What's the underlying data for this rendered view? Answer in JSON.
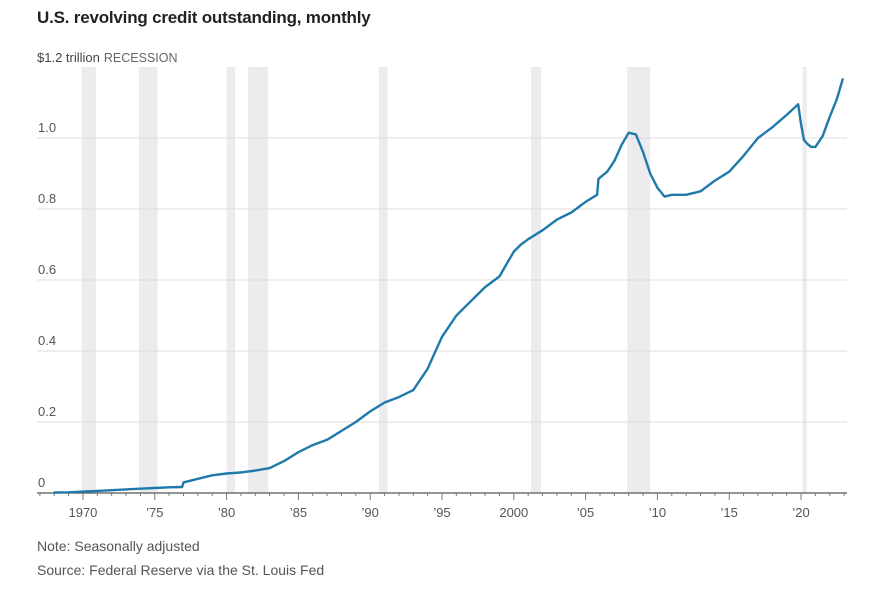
{
  "chart_data": {
    "type": "line",
    "title": "U.S. revolving credit outstanding, monthly",
    "ylabel": "$1.2 trillion",
    "recession_label": "RECESSION",
    "note": "Note: Seasonally adjusted",
    "source": "Source: Federal Reserve via the St. Louis Fed",
    "xlim": [
      1966.8,
      2023.2
    ],
    "ylim": [
      0,
      1.2
    ],
    "y_ticks": [
      {
        "value": 0,
        "label": "0"
      },
      {
        "value": 0.2,
        "label": "0.2"
      },
      {
        "value": 0.4,
        "label": "0.4"
      },
      {
        "value": 0.6,
        "label": "0.6"
      },
      {
        "value": 0.8,
        "label": "0.8"
      },
      {
        "value": 1.0,
        "label": "1.0"
      }
    ],
    "x_ticks": [
      {
        "value": 1970,
        "label": "1970"
      },
      {
        "value": 1975,
        "label": "’75"
      },
      {
        "value": 1980,
        "label": "’80"
      },
      {
        "value": 1985,
        "label": "’85"
      },
      {
        "value": 1990,
        "label": "’90"
      },
      {
        "value": 1995,
        "label": "’95"
      },
      {
        "value": 2000,
        "label": "2000"
      },
      {
        "value": 2005,
        "label": "’05"
      },
      {
        "value": 2010,
        "label": "’10"
      },
      {
        "value": 2015,
        "label": "’15"
      },
      {
        "value": 2020,
        "label": "’20"
      }
    ],
    "recessions": [
      [
        1969.9,
        1970.9
      ],
      [
        1973.9,
        1975.2
      ],
      [
        1980.0,
        1980.6
      ],
      [
        1981.5,
        1982.9
      ],
      [
        1990.6,
        1991.2
      ],
      [
        2001.2,
        2001.9
      ],
      [
        2007.9,
        2009.5
      ],
      [
        2020.1,
        2020.4
      ]
    ],
    "series": [
      {
        "name": "Revolving credit outstanding",
        "color": "#1f7aab",
        "x": [
          1968.0,
          1969.0,
          1970.0,
          1971.0,
          1972.0,
          1973.0,
          1974.0,
          1975.0,
          1976.0,
          1976.9,
          1977.0,
          1978.0,
          1979.0,
          1980.0,
          1981.0,
          1982.0,
          1983.0,
          1984.0,
          1985.0,
          1986.0,
          1987.0,
          1988.0,
          1989.0,
          1990.0,
          1991.0,
          1992.0,
          1993.0,
          1994.0,
          1995.0,
          1996.0,
          1997.0,
          1998.0,
          1999.0,
          2000.0,
          2000.5,
          2001.0,
          2002.0,
          2003.0,
          2004.0,
          2005.0,
          2005.8,
          2005.9,
          2006.5,
          2007.0,
          2007.5,
          2008.0,
          2008.5,
          2009.0,
          2009.5,
          2010.0,
          2010.5,
          2011.0,
          2012.0,
          2013.0,
          2014.0,
          2015.0,
          2016.0,
          2017.0,
          2018.0,
          2019.0,
          2019.8,
          2020.0,
          2020.2,
          2020.4,
          2020.7,
          2021.0,
          2021.5,
          2022.0,
          2022.5,
          2022.9
        ],
        "values": [
          0.001,
          0.002,
          0.004,
          0.006,
          0.008,
          0.01,
          0.012,
          0.014,
          0.016,
          0.017,
          0.03,
          0.04,
          0.05,
          0.055,
          0.058,
          0.063,
          0.07,
          0.09,
          0.115,
          0.135,
          0.15,
          0.175,
          0.2,
          0.23,
          0.255,
          0.27,
          0.29,
          0.35,
          0.44,
          0.5,
          0.54,
          0.58,
          0.61,
          0.68,
          0.7,
          0.715,
          0.74,
          0.77,
          0.79,
          0.82,
          0.84,
          0.885,
          0.905,
          0.935,
          0.98,
          1.015,
          1.01,
          0.96,
          0.9,
          0.86,
          0.835,
          0.84,
          0.84,
          0.85,
          0.88,
          0.905,
          0.95,
          1.0,
          1.03,
          1.065,
          1.095,
          1.04,
          0.995,
          0.985,
          0.975,
          0.975,
          1.005,
          1.06,
          1.11,
          1.165
        ]
      }
    ]
  }
}
